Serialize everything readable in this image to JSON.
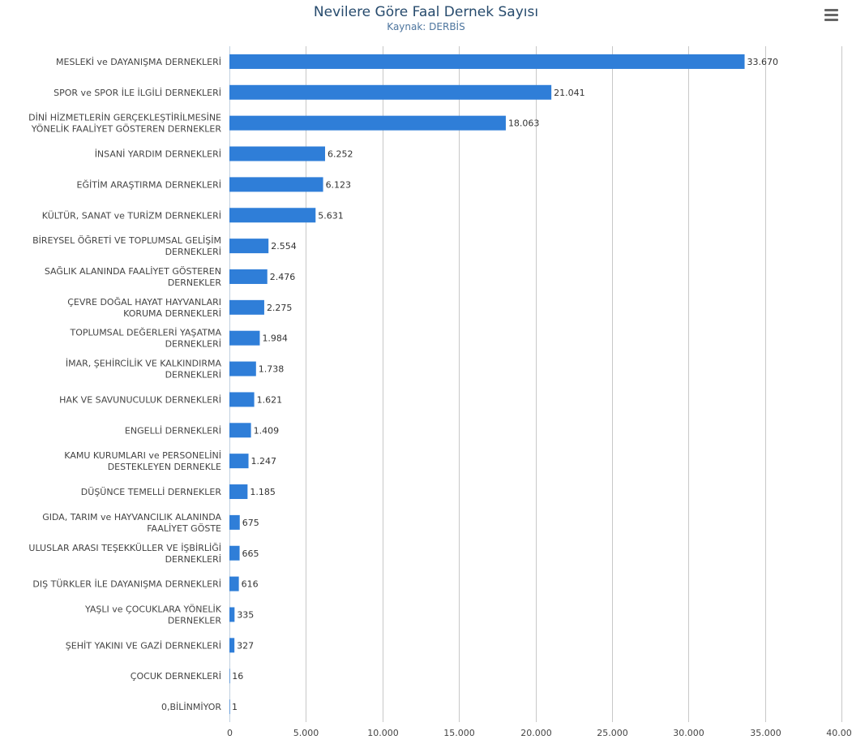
{
  "chart_data": {
    "type": "bar",
    "orientation": "horizontal",
    "title": "Nevilere Göre Faal Dernek Sayısı",
    "subtitle": "Kaynak: DERBİS",
    "xlim": [
      0,
      40000
    ],
    "grid": true,
    "bar_color": "#2f7ed8",
    "categories": [
      [
        "MESLEKİ ve DAYANIŞMA DERNEKLERİ"
      ],
      [
        "SPOR ve SPOR İLE İLGİLİ DERNEKLERİ"
      ],
      [
        "DİNİ HİZMETLERİN GERÇEKLEŞTİRİLMESİNE",
        "YÖNELİK FAALİYET GÖSTEREN DERNEKLER"
      ],
      [
        "İNSANİ YARDIM DERNEKLERİ"
      ],
      [
        "EĞİTİM ARAŞTIRMA DERNEKLERİ"
      ],
      [
        "KÜLTÜR, SANAT ve TURİZM DERNEKLERİ"
      ],
      [
        "BİREYSEL ÖĞRETİ VE TOPLUMSAL GELİŞİM",
        "DERNEKLERİ"
      ],
      [
        "SAĞLIK ALANINDA FAALİYET GÖSTEREN",
        "DERNEKLER"
      ],
      [
        "ÇEVRE DOĞAL HAYAT HAYVANLARI",
        "KORUMA DERNEKLERİ"
      ],
      [
        "TOPLUMSAL DEĞERLERİ YAŞATMA",
        "DERNEKLERİ"
      ],
      [
        "İMAR, ŞEHİRCİLİK VE KALKINDIRMA",
        "DERNEKLERİ"
      ],
      [
        "HAK VE SAVUNUCULUK DERNEKLERİ"
      ],
      [
        "ENGELLİ DERNEKLERİ"
      ],
      [
        "KAMU KURUMLARI ve PERSONELİNİ",
        "DESTEKLEYEN DERNEKLE"
      ],
      [
        "DÜŞÜNCE TEMELLİ DERNEKLER"
      ],
      [
        "GIDA, TARIM ve HAYVANCILIK ALANINDA",
        "FAALİYET GÖSTE"
      ],
      [
        "ULUSLAR ARASI TEŞEKKÜLLER VE İŞBİRLİĞİ",
        "DERNEKLERİ"
      ],
      [
        "DIŞ TÜRKLER İLE DAYANIŞMA DERNEKLERİ"
      ],
      [
        "YAŞLI ve ÇOCUKLARA YÖNELİK",
        "DERNEKLER"
      ],
      [
        "ŞEHİT YAKINI VE GAZİ DERNEKLERİ"
      ],
      [
        "ÇOCUK DERNEKLERİ"
      ],
      [
        "0,BİLİNMİYOR"
      ]
    ],
    "values": [
      33670,
      21041,
      18063,
      6252,
      6123,
      5631,
      2554,
      2476,
      2275,
      1984,
      1738,
      1621,
      1409,
      1247,
      1185,
      675,
      665,
      616,
      335,
      327,
      16,
      1
    ],
    "value_labels": [
      "33.670",
      "21.041",
      "18.063",
      "6.252",
      "6.123",
      "5.631",
      "2.554",
      "2.476",
      "2.275",
      "1.984",
      "1.738",
      "1.621",
      "1.409",
      "1.247",
      "1.185",
      "675",
      "665",
      "616",
      "335",
      "327",
      "16",
      "1"
    ],
    "x_ticks": [
      0,
      5000,
      10000,
      15000,
      20000,
      25000,
      30000,
      35000,
      40000
    ],
    "x_tick_labels": [
      "0",
      "5.000",
      "10.000",
      "15.000",
      "20.000",
      "25.000",
      "30.000",
      "35.000",
      "40.000"
    ]
  },
  "menu": {
    "icon": "hamburger-menu-icon"
  }
}
